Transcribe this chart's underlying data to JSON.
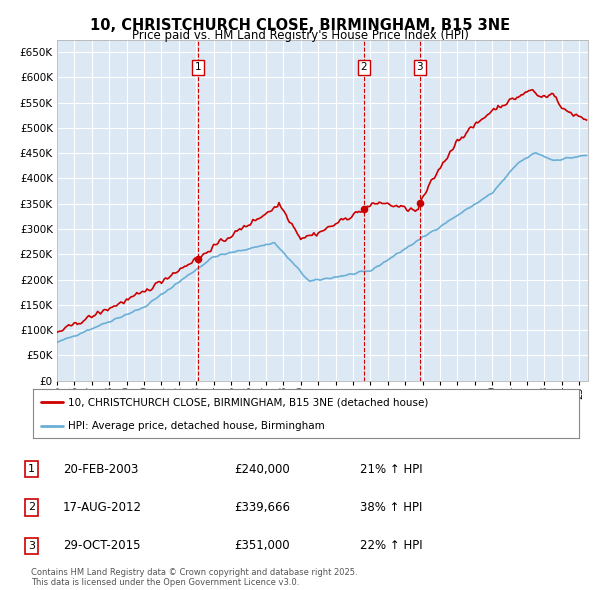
{
  "title": "10, CHRISTCHURCH CLOSE, BIRMINGHAM, B15 3NE",
  "subtitle": "Price paid vs. HM Land Registry's House Price Index (HPI)",
  "plot_bg_color": "#dce9f5",
  "ylim": [
    0,
    675000
  ],
  "yticks": [
    0,
    50000,
    100000,
    150000,
    200000,
    250000,
    300000,
    350000,
    400000,
    450000,
    500000,
    550000,
    600000,
    650000
  ],
  "xlim_start": 1995.0,
  "xlim_end": 2025.5,
  "sales": [
    {
      "label": "1",
      "date": "20-FEB-2003",
      "year_x": 2003.12,
      "price": 240000,
      "hpi_pct": "21%",
      "arrow": "↑"
    },
    {
      "label": "2",
      "date": "17-AUG-2012",
      "year_x": 2012.62,
      "price": 339666,
      "hpi_pct": "38%",
      "arrow": "↑"
    },
    {
      "label": "3",
      "date": "29-OCT-2015",
      "year_x": 2015.83,
      "price": 351000,
      "hpi_pct": "22%",
      "arrow": "↑"
    }
  ],
  "hpi_line_color": "#6baed6",
  "price_line_color": "#cc0000",
  "legend_label_price": "10, CHRISTCHURCH CLOSE, BIRMINGHAM, B15 3NE (detached house)",
  "legend_label_hpi": "HPI: Average price, detached house, Birmingham",
  "footer": "Contains HM Land Registry data © Crown copyright and database right 2025.\nThis data is licensed under the Open Government Licence v3.0."
}
